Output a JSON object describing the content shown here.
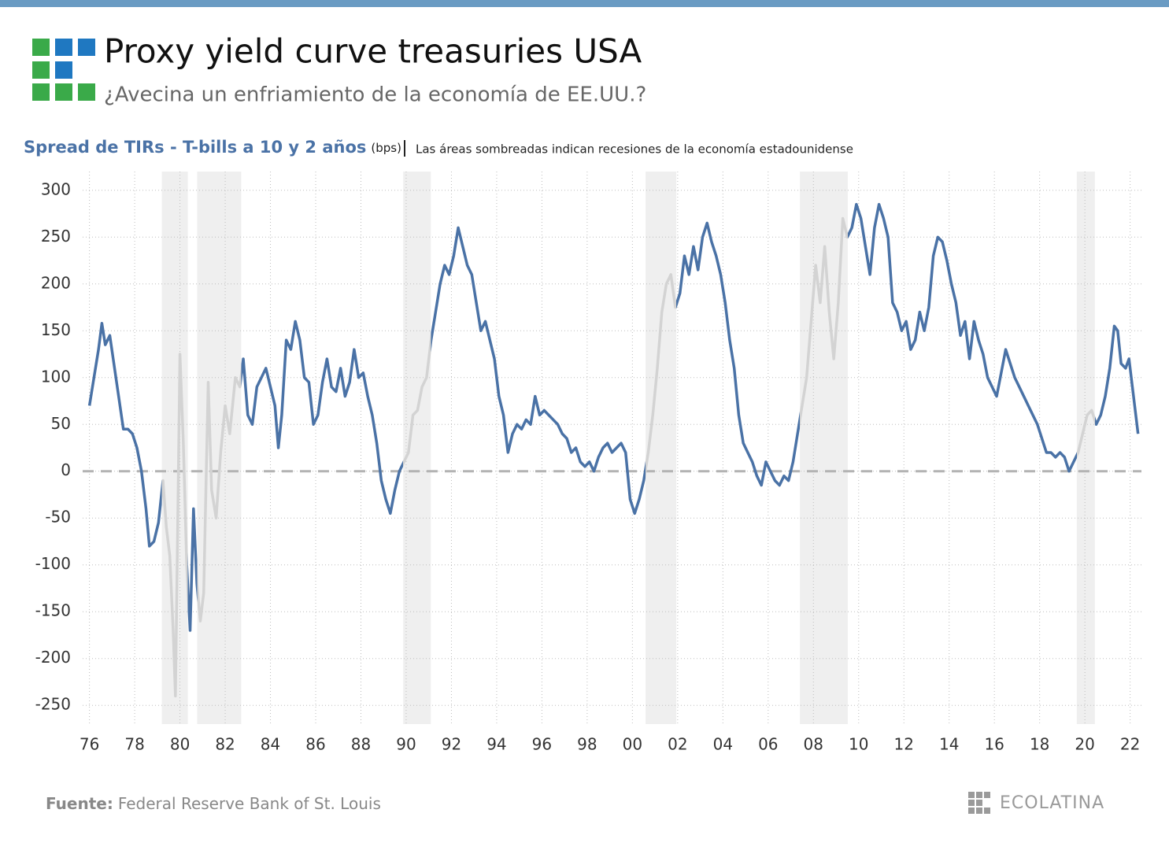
{
  "chart_data": {
    "type": "line",
    "title": "Proxy yield curve treasuries USA",
    "subtitle": "¿Avecina un enfriamiento de la economía de EE.UU.?",
    "chart_title": "Spread de TIRs - T-bills a 10 y 2 años",
    "units": "(bps)",
    "note": "Las áreas sombreadas indican recesiones de la economía estadounidense",
    "source_label": "Fuente:",
    "source": "Federal Reserve Bank of St. Louis",
    "brand": "ECOLATINA",
    "color": "#4a72a6",
    "recession_line_color": "#d3d3d3",
    "recession_fill": "#efefef",
    "recessions": [
      [
        1979.2,
        1980.35
      ],
      [
        1980.76,
        1982.71
      ],
      [
        1989.87,
        1991.09
      ],
      [
        2000.58,
        2001.94
      ],
      [
        2007.4,
        2009.52
      ],
      [
        2019.64,
        2020.44
      ]
    ],
    "reference_line": 0,
    "grid": true,
    "xlim": [
      1975.7,
      2022.5
    ],
    "ylim": [
      -270,
      320
    ],
    "yticks": [
      -250,
      -200,
      -150,
      -100,
      -50,
      0,
      50,
      100,
      150,
      200,
      250,
      300
    ],
    "xticks": [
      {
        "value": 1976,
        "label": "76"
      },
      {
        "value": 1978,
        "label": "78"
      },
      {
        "value": 1980,
        "label": "80"
      },
      {
        "value": 1982,
        "label": "82"
      },
      {
        "value": 1984,
        "label": "84"
      },
      {
        "value": 1986,
        "label": "86"
      },
      {
        "value": 1988,
        "label": "88"
      },
      {
        "value": 1990,
        "label": "90"
      },
      {
        "value": 1992,
        "label": "92"
      },
      {
        "value": 1994,
        "label": "94"
      },
      {
        "value": 1996,
        "label": "96"
      },
      {
        "value": 1998,
        "label": "98"
      },
      {
        "value": 2000,
        "label": "00"
      },
      {
        "value": 2002,
        "label": "02"
      },
      {
        "value": 2004,
        "label": "04"
      },
      {
        "value": 2006,
        "label": "06"
      },
      {
        "value": 2008,
        "label": "08"
      },
      {
        "value": 2010,
        "label": "10"
      },
      {
        "value": 2012,
        "label": "12"
      },
      {
        "value": 2014,
        "label": "14"
      },
      {
        "value": 2016,
        "label": "16"
      },
      {
        "value": 2018,
        "label": "18"
      },
      {
        "value": 2020,
        "label": "20"
      },
      {
        "value": 2022,
        "label": "22"
      }
    ],
    "x": [
      1976.0,
      1976.2,
      1976.4,
      1976.55,
      1976.7,
      1976.9,
      1977.05,
      1977.2,
      1977.35,
      1977.5,
      1977.7,
      1977.9,
      1978.1,
      1978.3,
      1978.5,
      1978.65,
      1978.85,
      1979.05,
      1979.25,
      1979.4,
      1979.55,
      1979.7,
      1979.8,
      1979.9,
      1980.0,
      1980.15,
      1980.3,
      1980.45,
      1980.6,
      1980.75,
      1980.9,
      1981.05,
      1981.25,
      1981.4,
      1981.6,
      1981.8,
      1982.0,
      1982.2,
      1982.45,
      1982.65,
      1982.8,
      1983.0,
      1983.2,
      1983.4,
      1983.6,
      1983.8,
      1984.0,
      1984.2,
      1984.35,
      1984.5,
      1984.7,
      1984.9,
      1985.1,
      1985.3,
      1985.5,
      1985.7,
      1985.9,
      1986.1,
      1986.3,
      1986.5,
      1986.7,
      1986.9,
      1987.1,
      1987.3,
      1987.5,
      1987.7,
      1987.9,
      1988.1,
      1988.3,
      1988.5,
      1988.7,
      1988.9,
      1989.1,
      1989.3,
      1989.5,
      1989.7,
      1989.9,
      1990.1,
      1990.3,
      1990.5,
      1990.7,
      1990.9,
      1991.1,
      1991.3,
      1991.5,
      1991.7,
      1991.9,
      1992.1,
      1992.3,
      1992.5,
      1992.7,
      1992.9,
      1993.1,
      1993.3,
      1993.5,
      1993.7,
      1993.9,
      1994.1,
      1994.3,
      1994.5,
      1994.7,
      1994.9,
      1995.1,
      1995.3,
      1995.5,
      1995.7,
      1995.9,
      1996.1,
      1996.3,
      1996.5,
      1996.7,
      1996.9,
      1997.1,
      1997.3,
      1997.5,
      1997.7,
      1997.9,
      1998.1,
      1998.3,
      1998.5,
      1998.7,
      1998.9,
      1999.1,
      1999.3,
      1999.5,
      1999.7,
      1999.9,
      2000.1,
      2000.3,
      2000.5,
      2000.7,
      2000.9,
      2001.1,
      2001.3,
      2001.5,
      2001.7,
      2001.9,
      2002.1,
      2002.3,
      2002.5,
      2002.7,
      2002.9,
      2003.1,
      2003.3,
      2003.5,
      2003.7,
      2003.9,
      2004.1,
      2004.3,
      2004.5,
      2004.7,
      2004.9,
      2005.1,
      2005.3,
      2005.5,
      2005.7,
      2005.9,
      2006.1,
      2006.3,
      2006.5,
      2006.7,
      2006.9,
      2007.1,
      2007.3,
      2007.5,
      2007.7,
      2007.9,
      2008.1,
      2008.3,
      2008.5,
      2008.7,
      2008.9,
      2009.1,
      2009.3,
      2009.5,
      2009.7,
      2009.9,
      2010.1,
      2010.3,
      2010.5,
      2010.7,
      2010.9,
      2011.1,
      2011.3,
      2011.5,
      2011.7,
      2011.9,
      2012.1,
      2012.3,
      2012.5,
      2012.7,
      2012.9,
      2013.1,
      2013.3,
      2013.5,
      2013.7,
      2013.9,
      2014.1,
      2014.3,
      2014.5,
      2014.7,
      2014.9,
      2015.1,
      2015.3,
      2015.5,
      2015.7,
      2015.9,
      2016.1,
      2016.3,
      2016.5,
      2016.7,
      2016.9,
      2017.1,
      2017.3,
      2017.5,
      2017.7,
      2017.9,
      2018.1,
      2018.3,
      2018.5,
      2018.7,
      2018.9,
      2019.1,
      2019.3,
      2019.5,
      2019.7,
      2019.9,
      2020.1,
      2020.3,
      2020.5,
      2020.7,
      2020.9,
      2021.1,
      2021.3,
      2021.45,
      2021.6,
      2021.8,
      2021.95,
      2022.1,
      2022.25,
      2022.35
    ],
    "values": [
      70,
      100,
      130,
      158,
      135,
      145,
      120,
      95,
      70,
      45,
      45,
      40,
      25,
      0,
      -40,
      -80,
      -75,
      -55,
      -10,
      -60,
      -90,
      -170,
      -240,
      -60,
      125,
      30,
      -100,
      -170,
      -40,
      -120,
      -160,
      -130,
      95,
      -20,
      -50,
      20,
      70,
      40,
      100,
      90,
      120,
      60,
      50,
      90,
      100,
      110,
      90,
      70,
      25,
      60,
      140,
      130,
      160,
      140,
      100,
      95,
      50,
      60,
      95,
      120,
      90,
      85,
      110,
      80,
      95,
      130,
      100,
      105,
      80,
      60,
      30,
      -10,
      -30,
      -45,
      -20,
      0,
      10,
      20,
      60,
      65,
      90,
      100,
      140,
      170,
      200,
      220,
      210,
      230,
      260,
      240,
      220,
      210,
      180,
      150,
      160,
      140,
      120,
      80,
      60,
      20,
      40,
      50,
      45,
      55,
      50,
      80,
      60,
      65,
      60,
      55,
      50,
      40,
      35,
      20,
      25,
      10,
      5,
      10,
      0,
      15,
      25,
      30,
      20,
      25,
      30,
      20,
      -30,
      -45,
      -30,
      -10,
      20,
      60,
      110,
      170,
      200,
      210,
      175,
      190,
      230,
      210,
      240,
      215,
      250,
      265,
      245,
      230,
      210,
      180,
      140,
      110,
      60,
      30,
      20,
      10,
      -5,
      -15,
      10,
      0,
      -10,
      -15,
      -5,
      -10,
      10,
      40,
      70,
      100,
      160,
      220,
      180,
      240,
      170,
      120,
      180,
      270,
      250,
      260,
      285,
      270,
      240,
      210,
      260,
      285,
      270,
      250,
      180,
      170,
      150,
      160,
      130,
      140,
      170,
      150,
      175,
      230,
      250,
      245,
      225,
      200,
      180,
      145,
      160,
      120,
      160,
      140,
      125,
      100,
      90,
      80,
      105,
      130,
      115,
      100,
      90,
      80,
      70,
      60,
      50,
      35,
      20,
      20,
      15,
      20,
      15,
      0,
      10,
      20,
      40,
      60,
      65,
      50,
      60,
      80,
      110,
      155,
      150,
      115,
      110,
      120,
      90,
      60,
      40
    ]
  }
}
